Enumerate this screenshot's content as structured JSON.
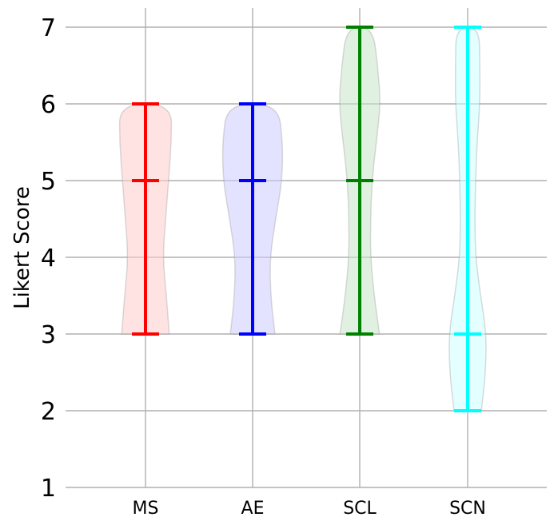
{
  "chart_data": {
    "type": "violin",
    "title": "",
    "ylabel": "Likert Score",
    "xlabel": "",
    "ylim": [
      1,
      7
    ],
    "yticks": [
      1,
      2,
      3,
      4,
      5,
      6,
      7
    ],
    "grid": true,
    "categories": [
      "MS",
      "AE",
      "SCL",
      "SCN"
    ],
    "series": [
      {
        "category": "MS",
        "color": "#ff0000",
        "fill": "#ffcccc",
        "min": 3,
        "median": 5,
        "max": 6,
        "density": [
          [
            3,
            0.66
          ],
          [
            3.5,
            0.58
          ],
          [
            4,
            0.48
          ],
          [
            4.5,
            0.56
          ],
          [
            5,
            0.64
          ],
          [
            5.5,
            0.72
          ],
          [
            6,
            0.72
          ]
        ]
      },
      {
        "category": "AE",
        "color": "#0000ff",
        "fill": "#ccccff",
        "min": 3,
        "median": 5,
        "max": 6,
        "density": [
          [
            3,
            0.62
          ],
          [
            3.5,
            0.5
          ],
          [
            4,
            0.48
          ],
          [
            4.5,
            0.64
          ],
          [
            5,
            0.82
          ],
          [
            5.5,
            0.84
          ],
          [
            6,
            0.7
          ]
        ]
      },
      {
        "category": "SCL",
        "color": "#008000",
        "fill": "#c8e6c8",
        "min": 3,
        "median": 5,
        "max": 7,
        "density": [
          [
            3,
            0.55
          ],
          [
            3.5,
            0.4
          ],
          [
            4,
            0.3
          ],
          [
            4.5,
            0.3
          ],
          [
            5,
            0.34
          ],
          [
            5.5,
            0.46
          ],
          [
            6,
            0.58
          ],
          [
            6.5,
            0.5
          ],
          [
            7,
            0.36
          ]
        ]
      },
      {
        "category": "SCN",
        "color": "#00ffff",
        "fill": "#ccffff",
        "min": 2,
        "median": 3,
        "max": 7,
        "density": [
          [
            2,
            0.38
          ],
          [
            2.5,
            0.5
          ],
          [
            3,
            0.52
          ],
          [
            3.5,
            0.36
          ],
          [
            4,
            0.22
          ],
          [
            4.5,
            0.2
          ],
          [
            5,
            0.22
          ],
          [
            5.5,
            0.26
          ],
          [
            6,
            0.34
          ],
          [
            6.5,
            0.34
          ],
          [
            7,
            0.32
          ]
        ]
      }
    ]
  }
}
